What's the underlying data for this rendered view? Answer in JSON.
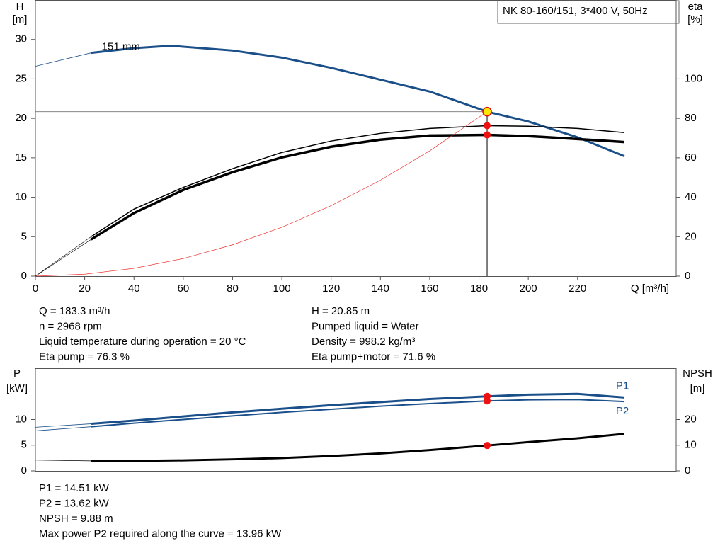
{
  "header": {
    "title": "NK 80-160/151, 3*400 V, 50Hz"
  },
  "chart_data": [
    {
      "type": "line",
      "xlabel": "Q [m³/h]",
      "ylabel": [
        "H",
        "[m]"
      ],
      "y2label": [
        "eta",
        "[%]"
      ],
      "xlim": [
        0,
        260
      ],
      "xticks": [
        0,
        20,
        40,
        60,
        80,
        100,
        120,
        140,
        160,
        180,
        200,
        220
      ],
      "ylim": [
        0,
        35
      ],
      "yticks": [
        0,
        5,
        10,
        15,
        20,
        25,
        30
      ],
      "y2lim": [
        0,
        140
      ],
      "y2ticks": [
        0,
        20,
        40,
        60,
        80,
        100
      ],
      "cursor": 183.3,
      "series": [
        {
          "name": "151 mm",
          "color": "#1a4f8a",
          "width": 3,
          "marker_color": "#ffe600",
          "x": [
            22.6,
            40,
            55,
            80,
            100,
            120,
            140,
            160,
            183.3,
            200,
            220,
            239
          ],
          "values": [
            28.3,
            28.9,
            29.2,
            28.6,
            27.7,
            26.4,
            24.9,
            23.4,
            20.85,
            19.6,
            17.6,
            15.2
          ]
        },
        {
          "color": "#1a4f8a",
          "width": 0.8,
          "x": [
            0,
            22.6
          ],
          "values": [
            26.6,
            28.3
          ]
        },
        {
          "color": "#000000",
          "width": 1.5,
          "axis": "y2",
          "marker_color": "#ee1111",
          "x": [
            22.6,
            40,
            60,
            80,
            100,
            120,
            140,
            160,
            183.3,
            200,
            220,
            239
          ],
          "values": [
            20,
            34,
            45,
            54.5,
            62.7,
            68.5,
            72.4,
            74.9,
            76.3,
            76,
            74.9,
            72.8
          ]
        },
        {
          "color": "#000000",
          "width": 3.5,
          "axis": "y2",
          "marker_color": "#ee1111",
          "x": [
            22.6,
            40,
            60,
            80,
            100,
            120,
            140,
            160,
            183.3,
            200,
            220,
            239
          ],
          "values": [
            18.6,
            32,
            43.7,
            52.7,
            60.2,
            65.6,
            69.2,
            71.3,
            71.6,
            71,
            69.5,
            68
          ]
        },
        {
          "color": "#000000",
          "width": 0.6,
          "axis": "y2",
          "x": [
            0,
            22.6
          ],
          "values": [
            0,
            20
          ]
        },
        {
          "color": "#000000",
          "width": 0.6,
          "axis": "y2",
          "x": [
            0,
            22.6
          ],
          "values": [
            0,
            18.6
          ]
        },
        {
          "color": "#ee3333",
          "width": 0.7,
          "x": [
            0,
            20,
            40,
            60,
            80,
            100,
            120,
            140,
            160,
            183.3
          ],
          "values": [
            0,
            0.25,
            0.99,
            2.23,
            3.97,
            6.2,
            8.93,
            12.16,
            15.88,
            20.85
          ]
        }
      ],
      "info_left": [
        "Q = 183.3 m³/h",
        "n = 2968 rpm",
        "Liquid temperature during operation = 20 °C",
        "Eta pump = 76.3 %"
      ],
      "info_right": [
        "H = 20.85 m",
        "Pumped liquid = Water",
        "Density = 998.2 kg/m³",
        "Eta pump+motor = 71.6 %"
      ]
    },
    {
      "type": "line",
      "ylabel": [
        "P",
        "[kW]"
      ],
      "y2label": [
        "NPSH",
        "[m]"
      ],
      "xlim": [
        0,
        260
      ],
      "ylim": [
        0,
        20
      ],
      "yticks": [
        0,
        5,
        10
      ],
      "y2lim": [
        0,
        40
      ],
      "y2ticks": [
        0,
        10,
        20
      ],
      "cursor": 183.3,
      "series": [
        {
          "name": "P1",
          "color": "#1a4f8a",
          "width": 3,
          "marker_color": "#ee1111",
          "x": [
            22.6,
            40,
            60,
            80,
            100,
            120,
            140,
            160,
            183.3,
            200,
            220,
            239
          ],
          "values": [
            9.17,
            9.8,
            10.6,
            11.4,
            12.1,
            12.8,
            13.4,
            14.0,
            14.51,
            14.85,
            15.0,
            14.3
          ]
        },
        {
          "name": "P2",
          "color": "#1a4f8a",
          "width": 2,
          "marker_color": "#ee1111",
          "x": [
            22.6,
            40,
            60,
            80,
            100,
            120,
            140,
            160,
            183.3,
            200,
            220,
            239
          ],
          "values": [
            8.6,
            9.3,
            10.0,
            10.7,
            11.4,
            12.0,
            12.6,
            13.1,
            13.62,
            13.85,
            13.9,
            13.5
          ]
        },
        {
          "color": "#1a4f8a",
          "width": 0.8,
          "x": [
            0,
            22.6
          ],
          "values": [
            8.5,
            9.17
          ]
        },
        {
          "color": "#1a4f8a",
          "width": 0.8,
          "x": [
            0,
            22.6
          ],
          "values": [
            7.8,
            8.6
          ]
        },
        {
          "color": "#000000",
          "width": 3,
          "axis": "y2",
          "marker_color": "#ee1111",
          "x": [
            22.6,
            40,
            60,
            80,
            100,
            120,
            140,
            160,
            183.3,
            200,
            220,
            239
          ],
          "values": [
            3.9,
            3.9,
            4.1,
            4.5,
            5.0,
            5.8,
            6.8,
            8.1,
            9.88,
            11.2,
            12.7,
            14.4
          ]
        },
        {
          "color": "#000000",
          "width": 0.8,
          "axis": "y2",
          "x": [
            0,
            22.6
          ],
          "values": [
            4.2,
            3.9
          ]
        }
      ],
      "info": [
        "P1 = 14.51 kW",
        "P2 = 13.62 kW",
        "NPSH = 9.88 m",
        "Max power P2 required along the curve = 13.96 kW"
      ]
    }
  ]
}
